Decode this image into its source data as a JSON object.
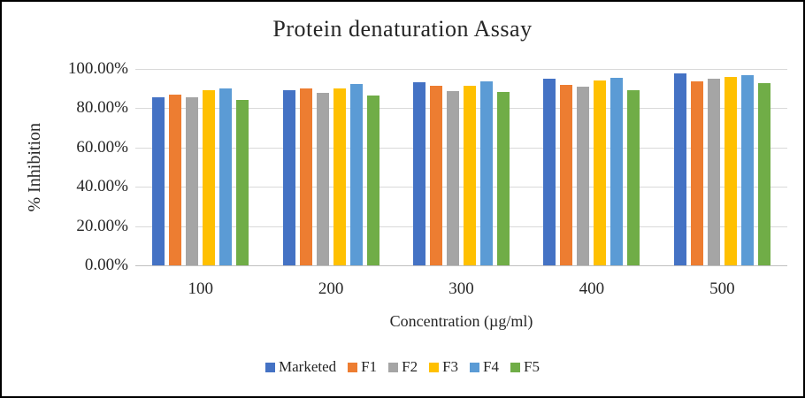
{
  "chart_data": {
    "type": "bar",
    "title": "Protein denaturation Assay",
    "xlabel": "Concentration (µg/ml)",
    "ylabel": "% Inhibition",
    "categories": [
      "100",
      "200",
      "300",
      "400",
      "500"
    ],
    "series": [
      {
        "name": "Marketed",
        "color": "#4472C4",
        "values": [
          85.7,
          89.0,
          93.4,
          95.1,
          97.6
        ]
      },
      {
        "name": "F1",
        "color": "#ED7D31",
        "values": [
          87.0,
          90.2,
          91.4,
          92.1,
          93.7
        ]
      },
      {
        "name": "F2",
        "color": "#A5A5A5",
        "values": [
          85.4,
          87.8,
          88.8,
          91.2,
          94.9
        ]
      },
      {
        "name": "F3",
        "color": "#FFC000",
        "values": [
          89.3,
          90.3,
          91.4,
          94.2,
          96.1
        ]
      },
      {
        "name": "F4",
        "color": "#5B9BD5",
        "values": [
          89.9,
          92.2,
          93.5,
          95.5,
          97.0
        ]
      },
      {
        "name": "F5",
        "color": "#70AD47",
        "values": [
          84.4,
          86.3,
          88.3,
          89.4,
          92.8
        ]
      }
    ],
    "ylim": [
      0,
      100
    ],
    "y_ticks": [
      "100.00%",
      "80.00%",
      "60.00%",
      "40.00%",
      "20.00%",
      "0.00%"
    ],
    "grid": true,
    "legend_position": "bottom"
  },
  "style_colors": {
    "gridline": "#D9D9D9",
    "axis_line": "#BFBFBF",
    "text": "#262626",
    "border": "#000000",
    "background": "#FFFFFF"
  }
}
